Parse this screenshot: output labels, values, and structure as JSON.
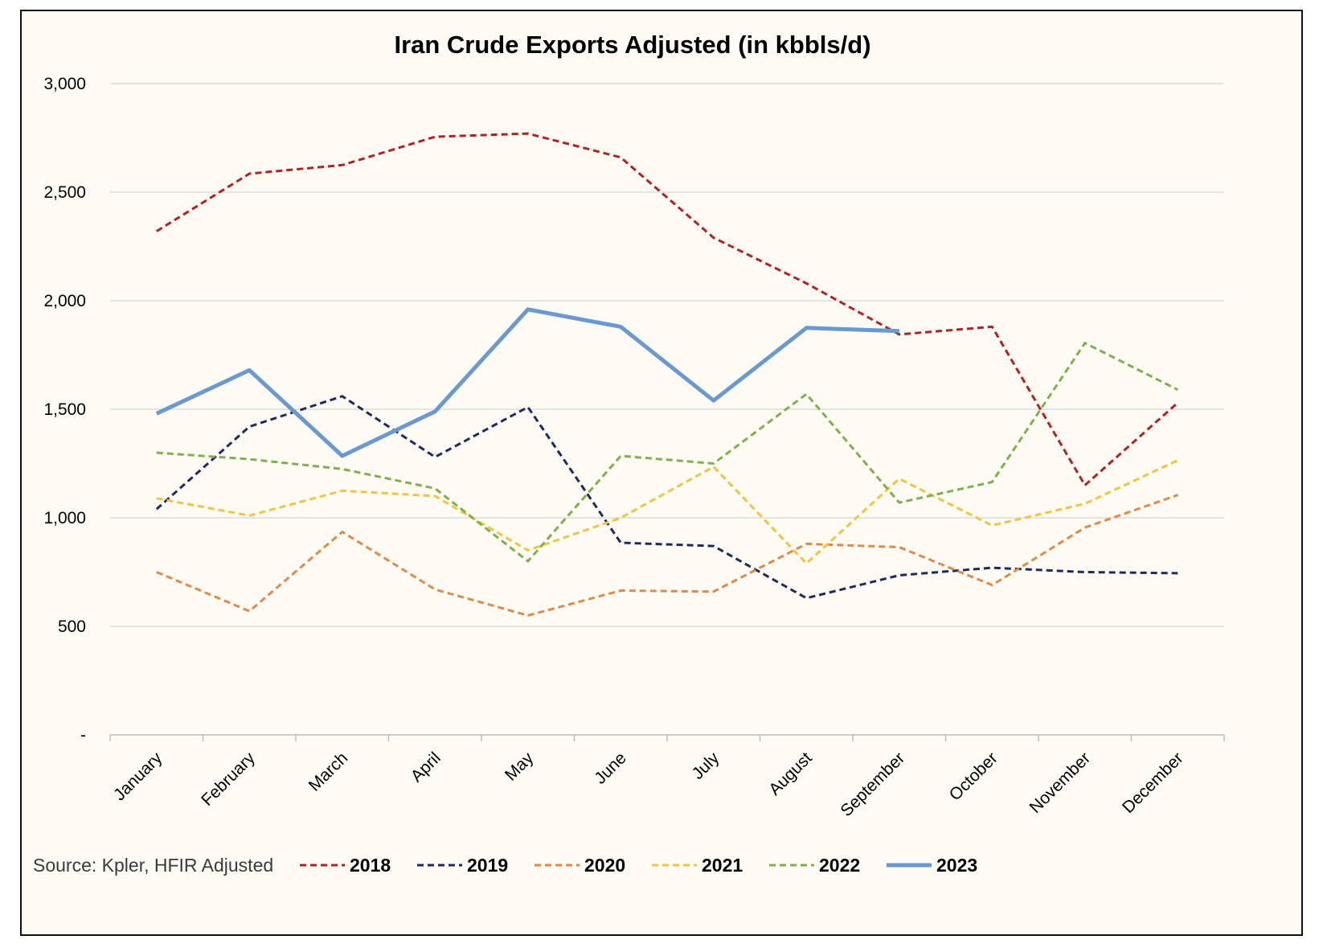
{
  "chart_data": {
    "type": "line",
    "title": "Iran Crude Exports Adjusted (in kbbls/d)",
    "xlabel": "",
    "ylabel": "",
    "ylim": [
      0,
      3000
    ],
    "yticks": [
      0,
      500,
      1000,
      1500,
      2000,
      2500,
      3000
    ],
    "ytick_labels": [
      "-",
      "500",
      "1,000",
      "1,500",
      "2,000",
      "2,500",
      "3,000"
    ],
    "grid": true,
    "source": "Source: Kpler, HFIR Adjusted",
    "legend_position": "bottom",
    "categories": [
      "January",
      "February",
      "March",
      "April",
      "May",
      "June",
      "July",
      "August",
      "September",
      "October",
      "November",
      "December"
    ],
    "series": [
      {
        "name": "2018",
        "color": "#b22222",
        "style": "dashed",
        "values": [
          2320,
          2585,
          2625,
          2755,
          2770,
          2660,
          2290,
          2080,
          1845,
          1880,
          1150,
          1530
        ]
      },
      {
        "name": "2019",
        "color": "#1c2a5c",
        "style": "dashed",
        "values": [
          1040,
          1420,
          1560,
          1280,
          1510,
          885,
          870,
          630,
          735,
          770,
          750,
          745
        ]
      },
      {
        "name": "2020",
        "color": "#e08a4a",
        "style": "dashed",
        "values": [
          750,
          570,
          935,
          670,
          550,
          665,
          660,
          880,
          865,
          690,
          955,
          1105
        ]
      },
      {
        "name": "2021",
        "color": "#f2c441",
        "style": "dashed",
        "values": [
          1090,
          1010,
          1125,
          1100,
          850,
          1000,
          1235,
          790,
          1180,
          965,
          1065,
          1265
        ]
      },
      {
        "name": "2022",
        "color": "#7fb04e",
        "style": "dashed",
        "values": [
          1300,
          1270,
          1225,
          1135,
          800,
          1285,
          1250,
          1570,
          1070,
          1165,
          1805,
          1590
        ]
      },
      {
        "name": "2023",
        "color": "#6a98d0",
        "style": "solid",
        "values": [
          1480,
          1680,
          1285,
          1490,
          1960,
          1880,
          1540,
          1875,
          1860,
          null,
          null,
          null
        ]
      }
    ]
  }
}
